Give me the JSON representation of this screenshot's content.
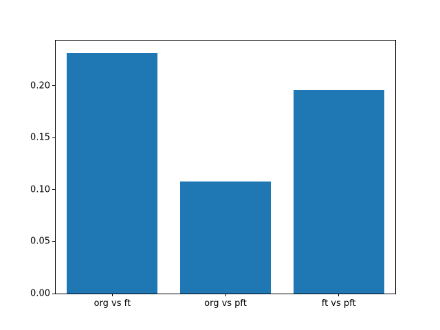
{
  "chart_data": {
    "type": "bar",
    "categories": [
      "org vs ft",
      "org vs pft",
      "ft vs pft"
    ],
    "values": [
      0.232,
      0.108,
      0.196
    ],
    "title": "",
    "xlabel": "",
    "ylabel": "",
    "ylim": [
      0,
      0.2436
    ],
    "yticks": [
      0.0,
      0.05,
      0.1,
      0.15,
      0.2
    ],
    "ytick_format_decimals": 2,
    "bar_color": "#1f77b4",
    "background_color": "#ffffff",
    "grid": false,
    "legend": false
  }
}
